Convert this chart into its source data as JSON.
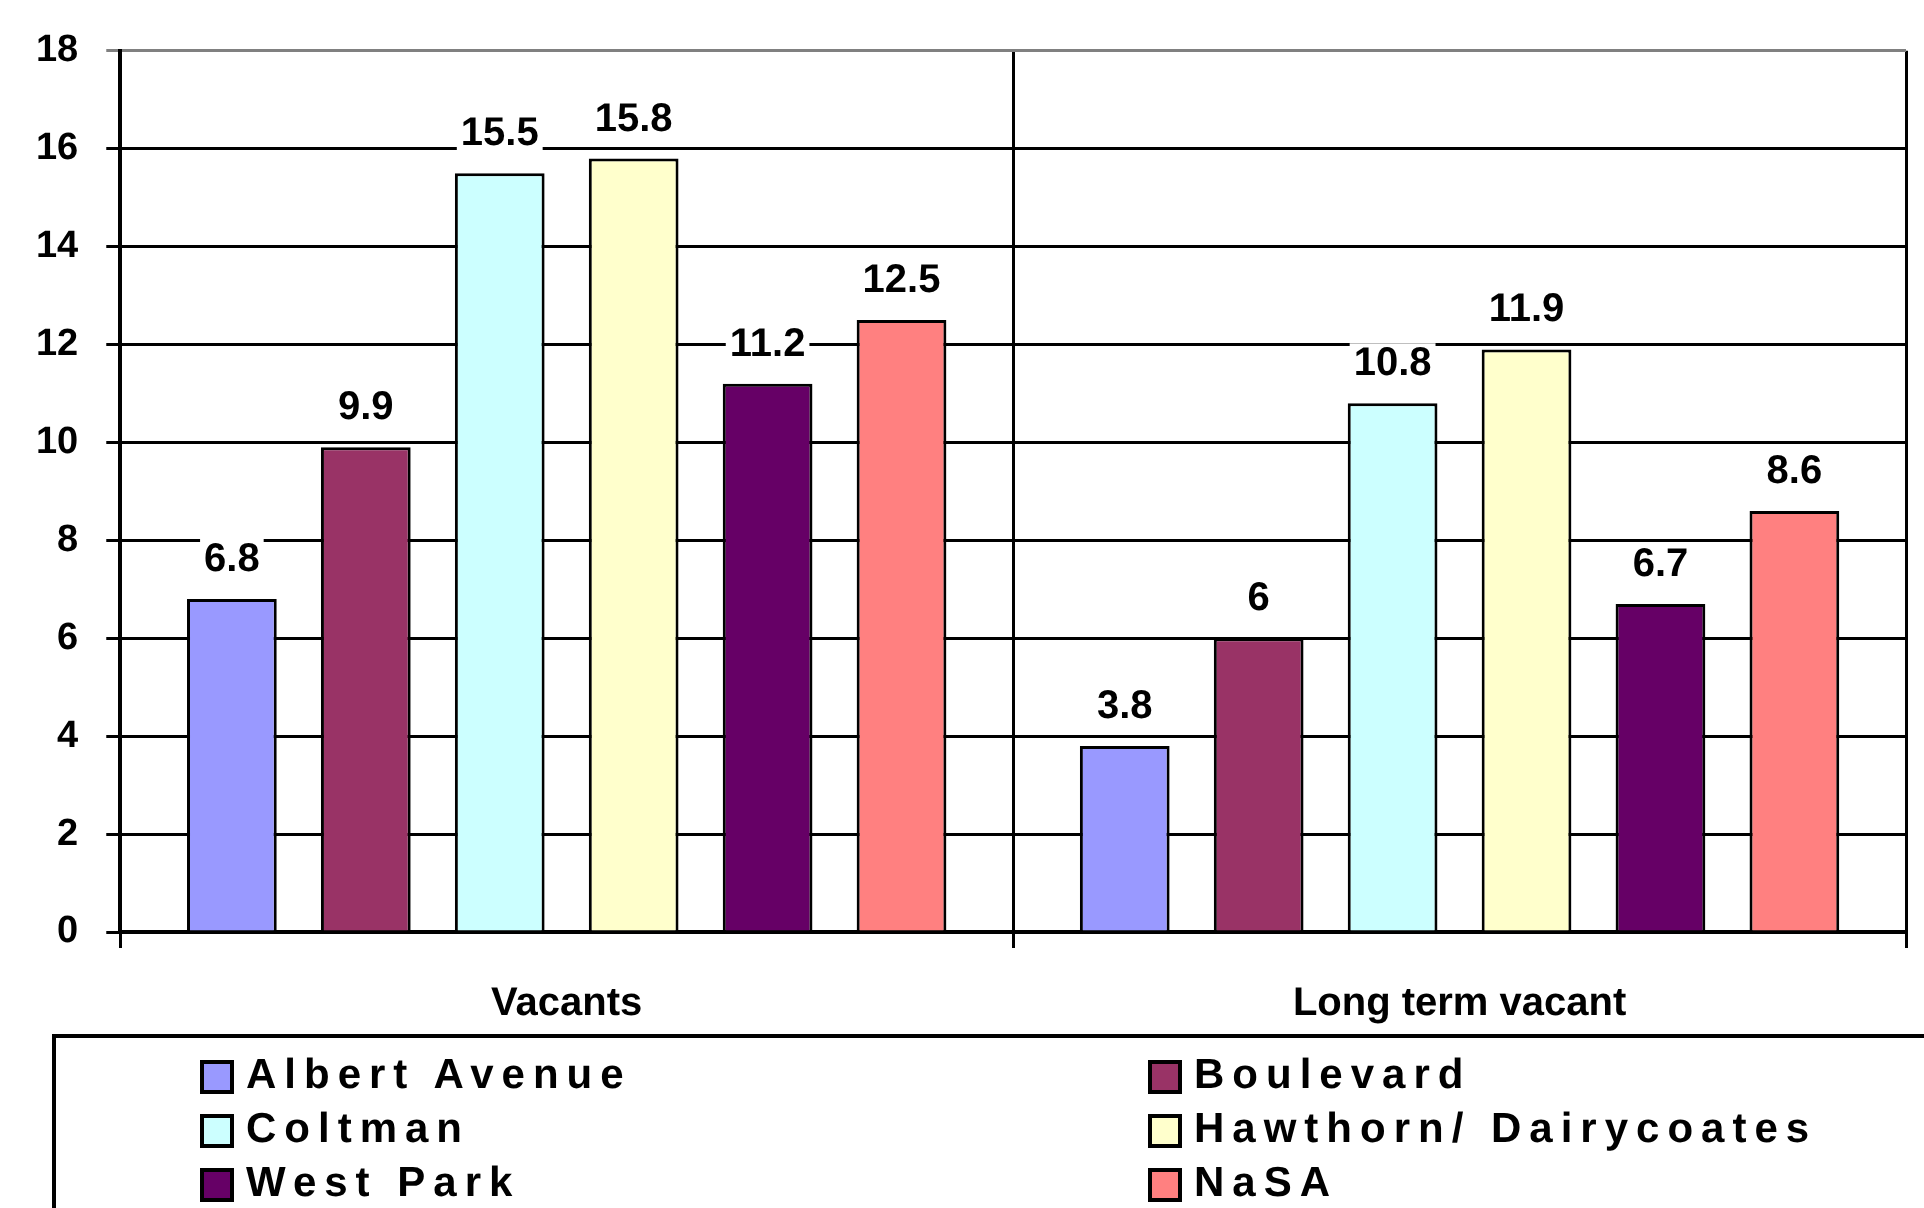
{
  "chart_data": {
    "type": "bar",
    "categories": [
      "Vacants",
      "Long term vacant"
    ],
    "series": [
      {
        "name": "Albert Avenue",
        "color": "#9999ff",
        "values": [
          6.8,
          3.8
        ]
      },
      {
        "name": "Boulevard",
        "color": "#993366",
        "values": [
          9.9,
          6
        ]
      },
      {
        "name": "Coltman",
        "color": "#ccffff",
        "values": [
          15.5,
          10.8
        ]
      },
      {
        "name": "Hawthorn/ Dairycoates",
        "color": "#ffffcc",
        "values": [
          15.8,
          11.9
        ]
      },
      {
        "name": "West Park",
        "color": "#660066",
        "values": [
          11.2,
          6.7
        ]
      },
      {
        "name": "NaSA",
        "color": "#ff8080",
        "values": [
          12.5,
          8.6
        ]
      }
    ],
    "ylim": [
      0,
      18
    ],
    "yticks": [
      0,
      2,
      4,
      6,
      8,
      10,
      12,
      14,
      16,
      18
    ],
    "grid": true,
    "legend": "bottom",
    "data_labels": true
  }
}
